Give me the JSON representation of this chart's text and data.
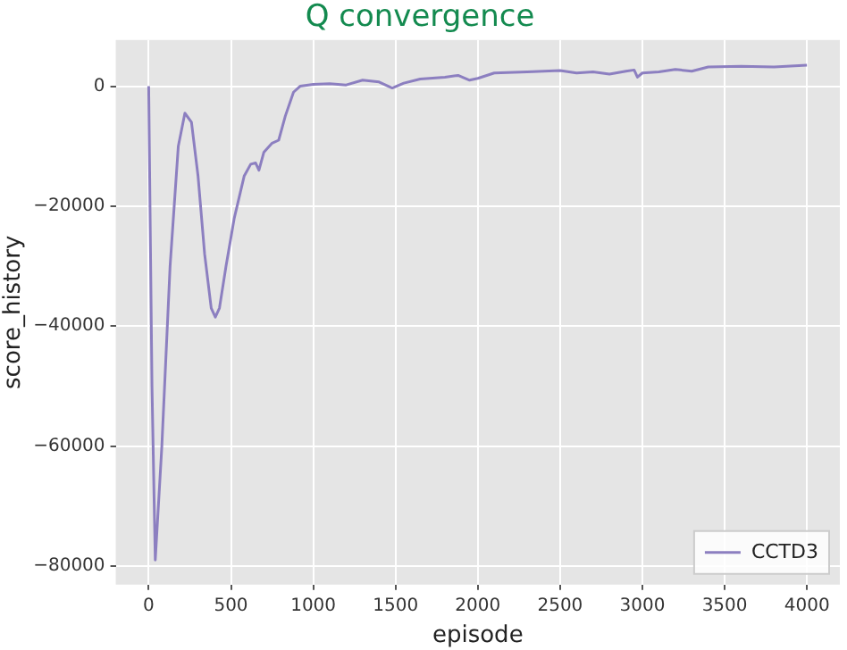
{
  "chart_data": {
    "type": "line",
    "title": "Q convergence",
    "xlabel": "episode",
    "ylabel": "score_history",
    "xlim": [
      -200,
      4200
    ],
    "xticks": [
      0,
      500,
      1000,
      1500,
      2000,
      2500,
      3000,
      3500,
      4000
    ],
    "ylim": [
      -83100,
      7700
    ],
    "yticks": [
      -80000,
      -60000,
      -40000,
      -20000,
      0
    ],
    "grid": true,
    "legend": "bottom right",
    "marker": "none",
    "line_style": "solid",
    "series": [
      {
        "name": "CCTD3",
        "color": "#8c7fc0",
        "x": [
          0,
          20,
          40,
          80,
          130,
          180,
          220,
          260,
          300,
          340,
          380,
          405,
          430,
          470,
          520,
          580,
          620,
          650,
          670,
          700,
          750,
          790,
          830,
          880,
          920,
          1000,
          1100,
          1200,
          1300,
          1400,
          1480,
          1550,
          1650,
          1800,
          1880,
          1950,
          2000,
          2100,
          2300,
          2500,
          2600,
          2700,
          2800,
          2900,
          2950,
          2970,
          3000,
          3100,
          3200,
          3300,
          3400,
          3600,
          3800,
          4000
        ],
        "values": [
          0,
          -50000,
          -79000,
          -60000,
          -30000,
          -10000,
          -4500,
          -6000,
          -15000,
          -28000,
          -37000,
          -38500,
          -37000,
          -30000,
          -22000,
          -15000,
          -13000,
          -12800,
          -14000,
          -11000,
          -9500,
          -9000,
          -5000,
          -1000,
          0,
          300,
          400,
          200,
          1000,
          700,
          -300,
          500,
          1200,
          1500,
          1800,
          1000,
          1300,
          2200,
          2400,
          2600,
          2200,
          2400,
          2000,
          2500,
          2700,
          1500,
          2200,
          2400,
          2800,
          2500,
          3200,
          3300,
          3200,
          3500
        ]
      }
    ]
  }
}
